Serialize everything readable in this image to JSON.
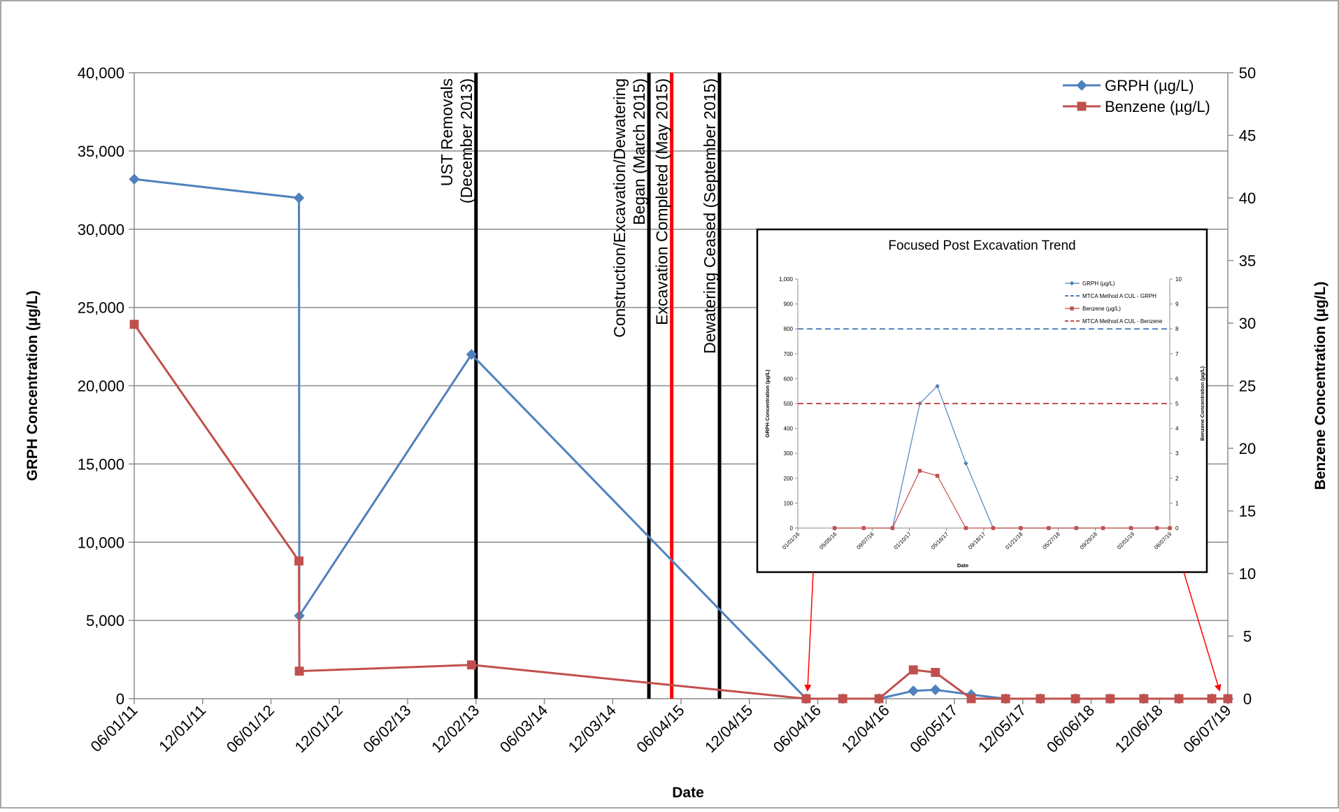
{
  "chart_data": [
    {
      "type": "line",
      "xlabel": "Date",
      "ylabel": "GRPH Concentration (µg/L)",
      "y2label": "Benzene Concentration (µg/L)",
      "xlim": [
        "2011-06-01",
        "2019-06-07"
      ],
      "ylim": [
        0,
        40000
      ],
      "y2lim": [
        0,
        50
      ],
      "grid": true,
      "legend_position": "top-right",
      "x_tick_labels": [
        "06/01/11",
        "12/01/11",
        "06/01/12",
        "12/01/12",
        "06/02/13",
        "12/02/13",
        "06/03/14",
        "12/03/14",
        "06/04/15",
        "12/04/15",
        "06/04/16",
        "12/04/16",
        "06/05/17",
        "12/05/17",
        "06/06/18",
        "12/06/18",
        "06/07/19"
      ],
      "y_tick_labels": [
        "0",
        "5,000",
        "10,000",
        "15,000",
        "20,000",
        "25,000",
        "30,000",
        "35,000",
        "40,000"
      ],
      "y2_tick_labels": [
        "0",
        "5",
        "10",
        "15",
        "20",
        "25",
        "30",
        "35",
        "40",
        "45",
        "50"
      ],
      "series": [
        {
          "name": "GRPH (µg/L)",
          "axis": "left",
          "color": "#4F81BD",
          "marker": "diamond",
          "x": [
            "2011-06-01",
            "2012-08-15",
            "2012-08-16",
            "2013-11-20",
            "2016-05-04",
            "2016-08-10",
            "2016-11-15",
            "2017-02-15",
            "2017-04-15",
            "2017-07-20",
            "2017-10-20",
            "2018-01-21",
            "2018-04-25",
            "2018-07-27",
            "2018-10-25",
            "2019-01-27",
            "2019-04-25",
            "2019-06-07"
          ],
          "values": [
            33200,
            32000,
            5300,
            22000,
            0,
            0,
            0,
            500,
            570,
            260,
            0,
            0,
            0,
            0,
            0,
            0,
            0,
            0
          ]
        },
        {
          "name": "Benzene (µg/L)",
          "axis": "right",
          "color": "#C0504D",
          "marker": "square",
          "x": [
            "2011-06-01",
            "2012-08-15",
            "2012-08-16",
            "2013-11-20",
            "2016-05-04",
            "2016-08-10",
            "2016-11-15",
            "2017-02-15",
            "2017-04-15",
            "2017-07-20",
            "2017-10-20",
            "2018-01-21",
            "2018-04-25",
            "2018-07-27",
            "2018-10-25",
            "2019-01-27",
            "2019-04-25",
            "2019-06-07"
          ],
          "values": [
            29.9,
            11,
            2.2,
            2.7,
            0,
            0,
            0,
            2.3,
            2.1,
            0,
            0,
            0,
            0,
            0,
            0,
            0,
            0,
            0
          ]
        }
      ],
      "events": [
        {
          "date": "2013-12-02",
          "color": "#000000",
          "label_lines": [
            "UST Removals",
            "(December 2013)"
          ]
        },
        {
          "date": "2015-03-10",
          "color": "#000000",
          "label_lines": [
            "Construction/Excavation/Dewatering",
            "Began (March 2015)"
          ]
        },
        {
          "date": "2015-05-10",
          "color": "#FF0000",
          "label_lines": [
            "Excavation Completed (May 2015)"
          ]
        },
        {
          "date": "2015-09-15",
          "color": "#000000",
          "label_lines": [
            "Dewatering Ceased (September 2015)"
          ]
        }
      ]
    },
    {
      "type": "line",
      "title": "Focused Post Excavation Trend",
      "xlabel": "Date",
      "ylabel": "GRPH Concentration (µg/L)",
      "y2label": "Benzene Concentration (µg/L)",
      "xlim": [
        "2016-01-01",
        "2019-06-07"
      ],
      "ylim": [
        0,
        1000
      ],
      "y2lim": [
        0,
        10
      ],
      "grid": false,
      "legend_position": "top-right",
      "x_tick_labels": [
        "01/01/16",
        "05/05/16",
        "09/07/16",
        "01/10/17",
        "05/16/17",
        "09/18/17",
        "01/21/18",
        "05/27/18",
        "09/29/18",
        "02/01/19",
        "06/07/19"
      ],
      "y_tick_labels": [
        "0",
        "100",
        "200",
        "300",
        "400",
        "500",
        "600",
        "700",
        "800",
        "900",
        "1,000"
      ],
      "y2_tick_labels": [
        "0",
        "1",
        "2",
        "3",
        "4",
        "5",
        "6",
        "7",
        "8",
        "9",
        "10"
      ],
      "series": [
        {
          "name": "GRPH (µg/L)",
          "axis": "left",
          "color": "#4F81BD",
          "marker": "diamond",
          "x": [
            "2016-05-04",
            "2016-08-10",
            "2016-11-15",
            "2017-02-15",
            "2017-04-15",
            "2017-07-20",
            "2017-10-20",
            "2018-01-21",
            "2018-04-25",
            "2018-07-27",
            "2018-10-25",
            "2019-01-27",
            "2019-04-25",
            "2019-06-07"
          ],
          "values": [
            0,
            0,
            0,
            500,
            570,
            260,
            0,
            0,
            0,
            0,
            0,
            0,
            0,
            0
          ]
        },
        {
          "name": "MTCA Method A CUL - GRPH",
          "axis": "left",
          "color": "#4F81BD",
          "dashed": true,
          "x": [
            "2016-01-01",
            "2019-06-07"
          ],
          "values": [
            800,
            800
          ]
        },
        {
          "name": "Benzene (µg/L)",
          "axis": "right",
          "color": "#C0504D",
          "marker": "square",
          "x": [
            "2016-05-04",
            "2016-08-10",
            "2016-11-15",
            "2017-02-15",
            "2017-04-15",
            "2017-07-20",
            "2017-10-20",
            "2018-01-21",
            "2018-04-25",
            "2018-07-27",
            "2018-10-25",
            "2019-01-27",
            "2019-04-25",
            "2019-06-07"
          ],
          "values": [
            0,
            0,
            0,
            2.3,
            2.1,
            0,
            0,
            0,
            0,
            0,
            0,
            0,
            0,
            0
          ]
        },
        {
          "name": "MTCA Method A CUL - Benzene",
          "axis": "right",
          "color": "#C0504D",
          "dashed": true,
          "x": [
            "2016-01-01",
            "2019-06-07"
          ],
          "values": [
            5,
            5
          ]
        }
      ]
    }
  ]
}
